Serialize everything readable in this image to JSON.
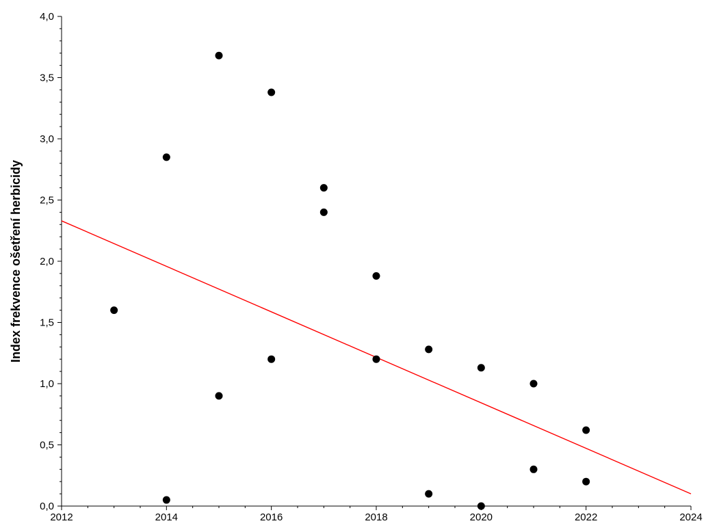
{
  "chart_data": {
    "type": "scatter",
    "title": "",
    "xlabel": "",
    "ylabel": "Index frekvence ošetření herbicidy",
    "xlim": [
      2012,
      2024
    ],
    "ylim": [
      0,
      4
    ],
    "x_ticks": [
      2012,
      2014,
      2016,
      2018,
      2020,
      2022,
      2024
    ],
    "x_tick_labels": [
      "2012",
      "2014",
      "2016",
      "2018",
      "2020",
      "2022",
      "2024"
    ],
    "y_ticks": [
      0,
      0.5,
      1,
      1.5,
      2,
      2.5,
      3,
      3.5,
      4
    ],
    "y_tick_labels": [
      "0,0",
      "0,5",
      "1,0",
      "1,5",
      "2,0",
      "2,5",
      "3,0",
      "3,5",
      "4,0"
    ],
    "grid": false,
    "legend": "none",
    "series": [
      {
        "marker_color": "#000000",
        "points": [
          {
            "x": 2013,
            "y": 1.6
          },
          {
            "x": 2014,
            "y": 2.85
          },
          {
            "x": 2014,
            "y": 0.05
          },
          {
            "x": 2015,
            "y": 3.68
          },
          {
            "x": 2015,
            "y": 0.9
          },
          {
            "x": 2016,
            "y": 3.38
          },
          {
            "x": 2016,
            "y": 1.2
          },
          {
            "x": 2017,
            "y": 2.6
          },
          {
            "x": 2017,
            "y": 2.4
          },
          {
            "x": 2018,
            "y": 1.88
          },
          {
            "x": 2018,
            "y": 1.2
          },
          {
            "x": 2019,
            "y": 1.28
          },
          {
            "x": 2019,
            "y": 0.1
          },
          {
            "x": 2020,
            "y": 1.13
          },
          {
            "x": 2020,
            "y": 0.0
          },
          {
            "x": 2021,
            "y": 1.0
          },
          {
            "x": 2021,
            "y": 0.3
          },
          {
            "x": 2022,
            "y": 0.62
          },
          {
            "x": 2022,
            "y": 0.2
          }
        ]
      }
    ],
    "trendline": {
      "color": "#ff0000",
      "points": [
        {
          "x": 2012,
          "y": 2.33
        },
        {
          "x": 2024,
          "y": 0.1
        }
      ]
    }
  }
}
